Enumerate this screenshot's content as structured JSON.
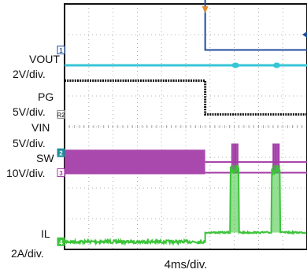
{
  "chart_data": {
    "type": "line",
    "title": "",
    "xlabel": "4ms/div.",
    "x_divisions": 10,
    "y_divisions": 8,
    "x_unit": "ms",
    "x_per_div": 4,
    "trigger_time_ms": 23.2,
    "grid": true,
    "series": [
      {
        "name": "VOUT",
        "sub": "OUT",
        "scale": "2V/div.",
        "channel": "1",
        "color": "#1f4e9b",
        "x": [
          0,
          23.2,
          23.2,
          40
        ],
        "y": [
          8.47,
          8.47,
          6.5,
          6.5
        ]
      },
      {
        "name": "VOUT-ripple",
        "channel": "",
        "color": "#37c6d6",
        "x": [
          0,
          40
        ],
        "y": [
          6.0,
          6.0
        ]
      },
      {
        "name": "PG",
        "scale": "5V/div.",
        "channel": "R2",
        "color": "#111111",
        "x": [
          0,
          23.2,
          23.2,
          40
        ],
        "y": [
          5.5,
          5.5,
          4.4,
          4.4
        ]
      },
      {
        "name": "VIN",
        "sub": "IN",
        "scale": "5V/div.",
        "channel": "2",
        "color": "#a33aa6",
        "x": [
          0,
          40
        ],
        "y": [
          2.85,
          2.85
        ]
      },
      {
        "name": "SW",
        "scale": "10V/div.",
        "channel": "3",
        "color": "#a33aa6",
        "x": [
          0,
          23.2,
          23.2,
          40
        ],
        "y": [
          2.85,
          2.85,
          2.5,
          2.5
        ],
        "switching_region_ms": [
          0,
          23.2
        ],
        "burst_ms": [
          [
            27.6,
            28.6
          ],
          [
            34.4,
            35.4
          ]
        ]
      },
      {
        "name": "IL",
        "sub": "L",
        "scale": "2A/div.",
        "channel": "4",
        "color": "#3cc43a",
        "x": [
          0,
          23.2,
          24.8,
          27.4,
          28.8,
          34.2,
          35.6,
          40
        ],
        "y": [
          0.25,
          0.25,
          0.55,
          0.55,
          0.55,
          0.55,
          0.55,
          0.55
        ],
        "burst_ms": [
          [
            27.4,
            28.8
          ],
          [
            34.2,
            35.6
          ]
        ],
        "burst_level_div": 2.6
      }
    ]
  }
}
